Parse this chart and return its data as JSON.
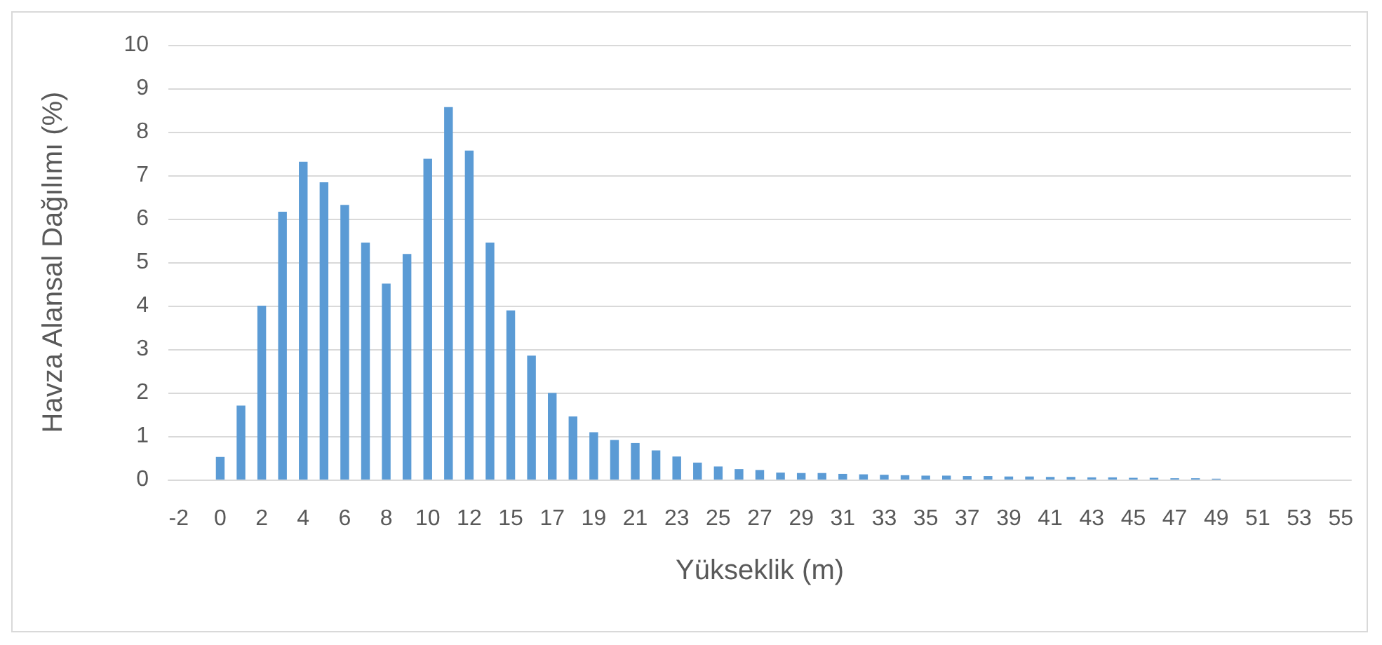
{
  "chart_data": {
    "type": "bar",
    "xlabel": "Yükseklik (m)",
    "ylabel": "Havza Alansal Dağılımı (%)",
    "categories": [
      "-2",
      null,
      "0",
      null,
      "2",
      null,
      "4",
      null,
      "6",
      null,
      "8",
      null,
      "10",
      null,
      "12",
      null,
      "15",
      null,
      "17",
      null,
      "19",
      null,
      "21",
      null,
      "23",
      null,
      "25",
      null,
      "27",
      null,
      "29",
      null,
      "31",
      null,
      "33",
      null,
      "35",
      null,
      "37",
      null,
      "39",
      null,
      "41",
      null,
      "43",
      null,
      "45",
      null,
      "47",
      null,
      "49",
      null,
      "51",
      null,
      "53",
      null,
      "55"
    ],
    "values": [
      null,
      null,
      0.52,
      1.7,
      4.0,
      6.16,
      7.31,
      6.84,
      6.32,
      5.45,
      4.51,
      5.19,
      7.38,
      8.57,
      7.57,
      5.45,
      3.89,
      2.85,
      1.99,
      1.45,
      1.09,
      0.91,
      0.84,
      0.67,
      0.53,
      0.39,
      0.3,
      0.24,
      0.22,
      0.16,
      0.15,
      0.15,
      0.13,
      0.12,
      0.11,
      0.1,
      0.09,
      0.09,
      0.08,
      0.08,
      0.07,
      0.07,
      0.06,
      0.06,
      0.05,
      0.05,
      0.04,
      0.04,
      0.03,
      0.03,
      0.02,
      null,
      null,
      null,
      null,
      null,
      null
    ],
    "color": "#5b9bd5",
    "ylim": [
      0,
      10
    ],
    "yticks": [
      0,
      1,
      2,
      3,
      4,
      5,
      6,
      7,
      8,
      9,
      10
    ],
    "grid": "y"
  }
}
